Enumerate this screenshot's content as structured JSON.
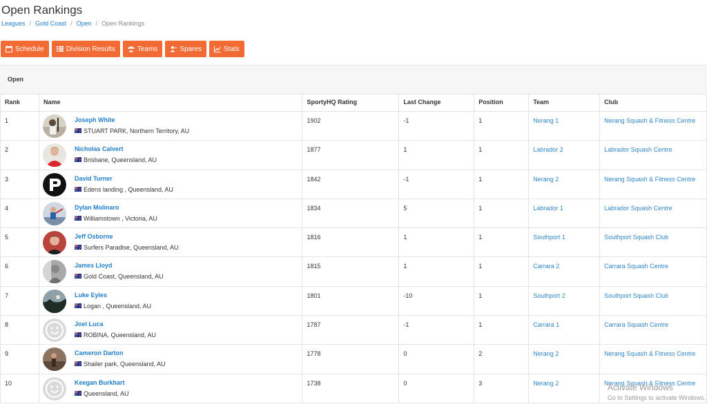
{
  "page": {
    "title": "Open Rankings",
    "breadcrumb": [
      "Leagues",
      "Gold Coast",
      "Open",
      "Open Rankings"
    ]
  },
  "toolbar": {
    "schedule": "Schedule",
    "division_results": "Division Results",
    "teams": "Teams",
    "spares": "Spares",
    "stats": "Stats",
    "button_color": "#f26b35"
  },
  "section": {
    "label": "Open"
  },
  "table": {
    "headers": [
      "Rank",
      "Name",
      "SportyHQ Rating",
      "Last Change",
      "Position",
      "Team",
      "Club"
    ],
    "rows": [
      {
        "rank": "1",
        "name": "Joseph White",
        "location": "STUART PARK, Northern Territory, AU",
        "rating": "1902",
        "change": "-1",
        "position": "1",
        "team": "Nerang 1",
        "club": "Nerang Squash & Fitness Centre",
        "avatar": "photo-squash-court-icon"
      },
      {
        "rank": "2",
        "name": "Nicholas Calvert",
        "location": "Brisbane, Queensland, AU",
        "rating": "1877",
        "change": "1",
        "position": "1",
        "team": "Labrador 2",
        "club": "Labrador Squash Centre",
        "avatar": "photo-red-shirt-icon"
      },
      {
        "rank": "3",
        "name": "David Turner",
        "location": "Edens landing , Queensland, AU",
        "rating": "1842",
        "change": "-1",
        "position": "1",
        "team": "Nerang 2",
        "club": "Nerang Squash & Fitness Centre",
        "avatar": "logo-black-p-icon"
      },
      {
        "rank": "4",
        "name": "Dylan Molinaro",
        "location": "Williamstown , Victoria, AU",
        "rating": "1834",
        "change": "5",
        "position": "1",
        "team": "Labrador 1",
        "club": "Labrador Squash Centre",
        "avatar": "photo-player-icon"
      },
      {
        "rank": "5",
        "name": "Jeff Osborne",
        "location": "Surfers Paradise, Queensland, AU",
        "rating": "1816",
        "change": "1",
        "position": "1",
        "team": "Southport 1",
        "club": "Southport Squash Club",
        "avatar": "photo-smiling-icon"
      },
      {
        "rank": "6",
        "name": "James Lloyd",
        "location": "Gold Coast, Queensland, AU",
        "rating": "1815",
        "change": "1",
        "position": "1",
        "team": "Carrara 2",
        "club": "Carrara Squash Centre",
        "avatar": "photo-grey-icon"
      },
      {
        "rank": "7",
        "name": "Luke Eyles",
        "location": "Logan , Queensland, AU",
        "rating": "1801",
        "change": "-10",
        "position": "1",
        "team": "Southport 2",
        "club": "Southport Squash Club",
        "avatar": "photo-landscape-icon"
      },
      {
        "rank": "8",
        "name": "Joel Luca",
        "location": "ROBINA, Queensland, AU",
        "rating": "1787",
        "change": "-1",
        "position": "1",
        "team": "Carrara 1",
        "club": "Carrara Squash Centre",
        "avatar": "default-smiley-icon"
      },
      {
        "rank": "9",
        "name": "Cameron Darton",
        "location": "Shailer park, Queensland, AU",
        "rating": "1778",
        "change": "0",
        "position": "2",
        "team": "Nerang 2",
        "club": "Nerang Squash & Fitness Centre",
        "avatar": "photo-brown-icon"
      },
      {
        "rank": "10",
        "name": "Keegan Burkhart",
        "location": "Queensland, AU",
        "rating": "1738",
        "change": "0",
        "position": "3",
        "team": "Nerang 2",
        "club": "Nerang Squash & Fitness Centre",
        "avatar": "default-smiley-icon"
      }
    ]
  },
  "watermark": {
    "line1": "Activate Windows",
    "line2": "Go to Settings to activate Windows."
  },
  "colors": {
    "accent": "#f26b35",
    "link": "#2f86c8"
  }
}
